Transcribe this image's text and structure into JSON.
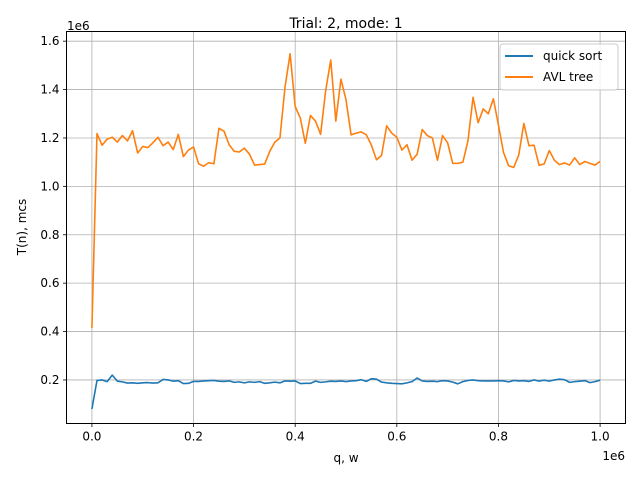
{
  "chart_data": {
    "type": "line",
    "title": "Trial: 2, mode: 1",
    "xlabel": "q, w",
    "ylabel": "T(n), mcs",
    "x_offset_label": "1e6",
    "y_offset_label": "1e6",
    "xlim": [
      -50000,
      1050000
    ],
    "ylim": [
      20000,
      1640000
    ],
    "xticks": [
      0,
      200000,
      400000,
      600000,
      800000,
      1000000
    ],
    "xtick_labels": [
      "0.0",
      "0.2",
      "0.4",
      "0.6",
      "0.8",
      "1.0"
    ],
    "yticks": [
      200000,
      400000,
      600000,
      800000,
      1000000,
      1200000,
      1400000,
      1600000
    ],
    "ytick_labels": [
      "0.2",
      "0.4",
      "0.6",
      "0.8",
      "1.0",
      "1.2",
      "1.4",
      "1.6"
    ],
    "grid": true,
    "legend_position": "top-right",
    "x": [
      0,
      10000,
      20000,
      30000,
      40000,
      50000,
      60000,
      70000,
      80000,
      90000,
      100000,
      110000,
      120000,
      130000,
      140000,
      150000,
      160000,
      170000,
      180000,
      190000,
      200000,
      210000,
      220000,
      230000,
      240000,
      250000,
      260000,
      270000,
      280000,
      290000,
      300000,
      310000,
      320000,
      330000,
      340000,
      350000,
      360000,
      370000,
      380000,
      390000,
      400000,
      410000,
      420000,
      430000,
      440000,
      450000,
      460000,
      470000,
      480000,
      490000,
      500000,
      510000,
      520000,
      530000,
      540000,
      550000,
      560000,
      570000,
      580000,
      590000,
      600000,
      610000,
      620000,
      630000,
      640000,
      650000,
      660000,
      670000,
      680000,
      690000,
      700000,
      710000,
      720000,
      730000,
      740000,
      750000,
      760000,
      770000,
      780000,
      790000,
      800000,
      810000,
      820000,
      830000,
      840000,
      850000,
      860000,
      870000,
      880000,
      890000,
      900000,
      910000,
      920000,
      930000,
      940000,
      950000,
      960000,
      970000,
      980000,
      990000,
      1000000
    ],
    "series": [
      {
        "name": "quick sort",
        "color": "#1f77b4",
        "values": [
          80000,
          198000,
          200000,
          193000,
          220000,
          195000,
          192000,
          187000,
          188000,
          186000,
          188000,
          189000,
          187000,
          188000,
          202000,
          200000,
          195000,
          197000,
          185000,
          186000,
          194000,
          194000,
          196000,
          197000,
          198000,
          195000,
          194000,
          196000,
          190000,
          192000,
          188000,
          192000,
          190000,
          193000,
          186000,
          188000,
          191000,
          188000,
          196000,
          195000,
          196000,
          185000,
          186000,
          186000,
          195000,
          190000,
          192000,
          195000,
          194000,
          196000,
          193000,
          196000,
          197000,
          201000,
          194000,
          205000,
          203000,
          191000,
          188000,
          186000,
          185000,
          184000,
          188000,
          193000,
          208000,
          196000,
          194000,
          195000,
          193000,
          197000,
          196000,
          191000,
          184000,
          193000,
          198000,
          200000,
          197000,
          196000,
          196000,
          196000,
          197000,
          196000,
          192000,
          198000,
          196000,
          197000,
          194000,
          200000,
          195000,
          199000,
          195000,
          200000,
          203000,
          201000,
          190000,
          193000,
          195000,
          197000,
          189000,
          193000,
          199000
        ]
      },
      {
        "name": "AVL tree",
        "color": "#ff7f0e",
        "values": [
          415000,
          1218000,
          1170000,
          1195000,
          1203000,
          1183000,
          1210000,
          1188000,
          1230000,
          1138000,
          1165000,
          1160000,
          1180000,
          1203000,
          1168000,
          1183000,
          1152000,
          1215000,
          1123000,
          1150000,
          1163000,
          1093000,
          1083000,
          1098000,
          1093000,
          1240000,
          1228000,
          1172000,
          1145000,
          1142000,
          1158000,
          1133000,
          1088000,
          1090000,
          1092000,
          1145000,
          1183000,
          1200000,
          1410000,
          1548000,
          1330000,
          1283000,
          1178000,
          1293000,
          1270000,
          1215000,
          1395000,
          1522000,
          1270000,
          1443000,
          1358000,
          1213000,
          1220000,
          1225000,
          1213000,
          1170000,
          1110000,
          1128000,
          1250000,
          1220000,
          1203000,
          1150000,
          1172000,
          1108000,
          1133000,
          1235000,
          1210000,
          1200000,
          1108000,
          1210000,
          1180000,
          1095000,
          1095000,
          1100000,
          1188000,
          1368000,
          1263000,
          1320000,
          1300000,
          1362000,
          1253000,
          1140000,
          1085000,
          1078000,
          1130000,
          1260000,
          1168000,
          1170000,
          1087000,
          1093000,
          1148000,
          1108000,
          1090000,
          1097000,
          1088000,
          1118000,
          1090000,
          1103000,
          1095000,
          1088000,
          1103000
        ]
      }
    ]
  }
}
